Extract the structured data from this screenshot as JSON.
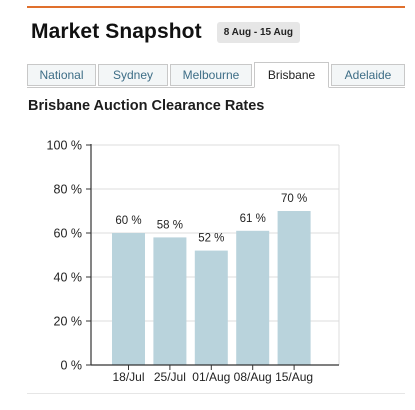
{
  "header": {
    "title": "Market Snapshot",
    "date_range": "8 Aug - 15 Aug"
  },
  "tabs": [
    {
      "label": "National",
      "active": false
    },
    {
      "label": "Sydney",
      "active": false
    },
    {
      "label": "Melbourne",
      "active": false
    },
    {
      "label": "Brisbane",
      "active": true
    },
    {
      "label": "Adelaide",
      "active": false
    }
  ],
  "chart_title": "Brisbane Auction Clearance Rates",
  "chart_data": {
    "type": "bar",
    "categories": [
      "18/Jul",
      "25/Jul",
      "01/Aug",
      "08/Aug",
      "15/Aug"
    ],
    "values": [
      60,
      58,
      52,
      61,
      70
    ],
    "data_labels": [
      "60 %",
      "58 %",
      "52 %",
      "61 %",
      "70 %"
    ],
    "yticks": [
      {
        "value": 0,
        "label": "0 %"
      },
      {
        "value": 20,
        "label": "20 %"
      },
      {
        "value": 40,
        "label": "40 %"
      },
      {
        "value": 60,
        "label": "60 %"
      },
      {
        "value": 80,
        "label": "80 %"
      },
      {
        "value": 100,
        "label": "100 %"
      }
    ],
    "ylim": [
      0,
      100
    ],
    "grid": true,
    "colors": {
      "bar": "#b9d3dc",
      "grid": "#dcdcdc",
      "axis": "#333333"
    }
  }
}
